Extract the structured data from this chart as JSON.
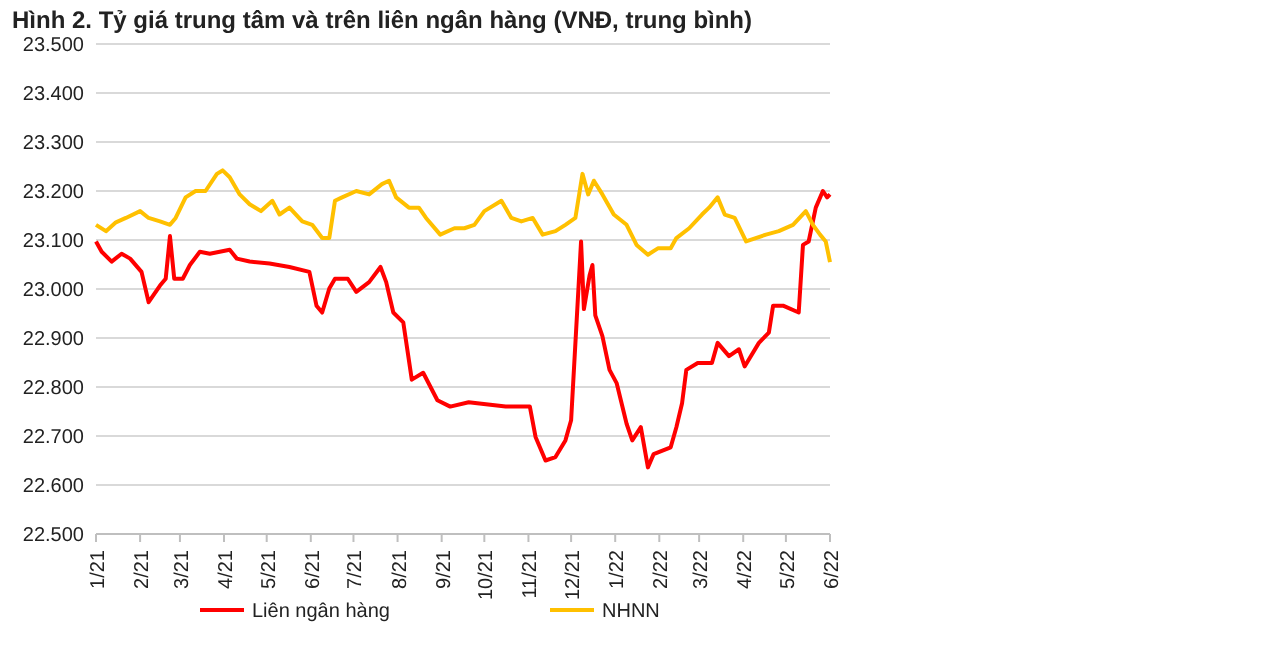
{
  "chart_data": {
    "type": "line",
    "title": "Hình 2. Tỷ giá trung tâm và trên liên ngân hàng (VNĐ, trung bình)",
    "xlim": [
      "2021-01-01",
      "2022-06-01"
    ],
    "xticks": [
      {
        "value": "2021-01-01",
        "label": "1/21"
      },
      {
        "value": "2021-02-01",
        "label": "2/21"
      },
      {
        "value": "2021-03-01",
        "label": "3/21"
      },
      {
        "value": "2021-04-01",
        "label": "4/21"
      },
      {
        "value": "2021-05-01",
        "label": "5/21"
      },
      {
        "value": "2021-06-01",
        "label": "6/21"
      },
      {
        "value": "2021-07-01",
        "label": "7/21"
      },
      {
        "value": "2021-08-01",
        "label": "8/21"
      },
      {
        "value": "2021-09-01",
        "label": "9/21"
      },
      {
        "value": "2021-10-01",
        "label": "10/21"
      },
      {
        "value": "2021-11-01",
        "label": "11/21"
      },
      {
        "value": "2021-12-01",
        "label": "12/21"
      },
      {
        "value": "2022-01-01",
        "label": "1/22"
      },
      {
        "value": "2022-02-01",
        "label": "2/22"
      },
      {
        "value": "2022-03-01",
        "label": "3/22"
      },
      {
        "value": "2022-04-01",
        "label": "4/22"
      },
      {
        "value": "2022-05-01",
        "label": "5/22"
      },
      {
        "value": "2022-06-01",
        "label": "6/22"
      }
    ],
    "ylim": [
      22500,
      23500
    ],
    "yticks": [
      {
        "value": 22500,
        "label": "22.500"
      },
      {
        "value": 22600,
        "label": "22.600"
      },
      {
        "value": 22700,
        "label": "22.700"
      },
      {
        "value": 22800,
        "label": "22.800"
      },
      {
        "value": 22900,
        "label": "22.900"
      },
      {
        "value": 23000,
        "label": "23.000"
      },
      {
        "value": 23100,
        "label": "23.100"
      },
      {
        "value": 23200,
        "label": "23.200"
      },
      {
        "value": 23300,
        "label": "23.300"
      },
      {
        "value": 23400,
        "label": "23.400"
      },
      {
        "value": 23500,
        "label": "23.500"
      }
    ],
    "grid": "y",
    "legend": "bottom",
    "marker": "none",
    "line_style": "solid",
    "series": [
      {
        "name": "Liên ngân hàng",
        "color": "#ff0000",
        "x": [
          "2021-01-01",
          "2021-01-05",
          "2021-01-12",
          "2021-01-19",
          "2021-01-25",
          "2021-02-02",
          "2021-02-07",
          "2021-02-15",
          "2021-02-19",
          "2021-02-22",
          "2021-02-25",
          "2021-03-03",
          "2021-03-08",
          "2021-03-15",
          "2021-03-22",
          "2021-04-05",
          "2021-04-10",
          "2021-04-19",
          "2021-05-03",
          "2021-05-17",
          "2021-05-31",
          "2021-06-05",
          "2021-06-09",
          "2021-06-14",
          "2021-06-18",
          "2021-06-27",
          "2021-07-03",
          "2021-07-12",
          "2021-07-20",
          "2021-07-24",
          "2021-07-29",
          "2021-08-05",
          "2021-08-11",
          "2021-08-19",
          "2021-08-29",
          "2021-09-07",
          "2021-09-20",
          "2021-09-26",
          "2021-10-16",
          "2021-11-02",
          "2021-11-06",
          "2021-11-13",
          "2021-11-20",
          "2021-11-27",
          "2021-12-01",
          "2021-12-08",
          "2021-12-10",
          "2021-12-14",
          "2021-12-16",
          "2021-12-18",
          "2021-12-23",
          "2021-12-28",
          "2022-01-02",
          "2022-01-09",
          "2022-01-13",
          "2022-01-19",
          "2022-01-24",
          "2022-01-28",
          "2022-02-09",
          "2022-02-13",
          "2022-02-17",
          "2022-02-20",
          "2022-02-28",
          "2022-03-10",
          "2022-03-14",
          "2022-03-22",
          "2022-03-29",
          "2022-04-02",
          "2022-04-12",
          "2022-04-19",
          "2022-04-22",
          "2022-04-29",
          "2022-05-10",
          "2022-05-13",
          "2022-05-17",
          "2022-05-22",
          "2022-05-27",
          "2022-05-30",
          "2022-06-01"
        ],
        "values": [
          23097,
          23076,
          23056,
          23072,
          23062,
          23035,
          22973,
          23007,
          23021,
          23108,
          23021,
          23021,
          23049,
          23076,
          23072,
          23080,
          23062,
          23056,
          23052,
          23045,
          23035,
          22966,
          22952,
          23001,
          23021,
          23021,
          22994,
          23014,
          23045,
          23014,
          22952,
          22932,
          22815,
          22829,
          22773,
          22760,
          22769,
          22767,
          22760,
          22760,
          22698,
          22650,
          22657,
          22691,
          22732,
          23097,
          22959,
          23028,
          23049,
          22946,
          22904,
          22835,
          22808,
          22725,
          22691,
          22718,
          22636,
          22663,
          22677,
          22718,
          22767,
          22835,
          22849,
          22849,
          22890,
          22863,
          22877,
          22842,
          22890,
          22911,
          22966,
          22966,
          22952,
          23090,
          23097,
          23166,
          23200,
          23187,
          23193
        ]
      },
      {
        "name": "NHNN",
        "color": "#ffc000",
        "x": [
          "2021-01-01",
          "2021-01-08",
          "2021-01-15",
          "2021-01-22",
          "2021-02-01",
          "2021-02-07",
          "2021-02-15",
          "2021-02-22",
          "2021-02-26",
          "2021-03-05",
          "2021-03-12",
          "2021-03-19",
          "2021-03-27",
          "2021-03-31",
          "2021-04-05",
          "2021-04-12",
          "2021-04-19",
          "2021-04-27",
          "2021-05-05",
          "2021-05-10",
          "2021-05-17",
          "2021-05-26",
          "2021-06-02",
          "2021-06-09",
          "2021-06-14",
          "2021-06-18",
          "2021-06-23",
          "2021-07-03",
          "2021-07-12",
          "2021-07-21",
          "2021-07-26",
          "2021-07-31",
          "2021-08-09",
          "2021-08-16",
          "2021-08-21",
          "2021-08-31",
          "2021-09-10",
          "2021-09-17",
          "2021-09-24",
          "2021-10-01",
          "2021-10-13",
          "2021-10-20",
          "2021-10-27",
          "2021-11-04",
          "2021-11-11",
          "2021-11-20",
          "2021-11-27",
          "2021-12-04",
          "2021-12-09",
          "2021-12-13",
          "2021-12-17",
          "2021-12-23",
          "2021-12-31",
          "2022-01-09",
          "2022-01-16",
          "2022-01-24",
          "2022-01-31",
          "2022-02-09",
          "2022-02-13",
          "2022-02-22",
          "2022-03-03",
          "2022-03-08",
          "2022-03-14",
          "2022-03-19",
          "2022-03-26",
          "2022-04-03",
          "2022-04-17",
          "2022-04-26",
          "2022-05-06",
          "2022-05-15",
          "2022-05-20",
          "2022-05-25",
          "2022-05-29",
          "2022-06-01"
        ],
        "values": [
          23131,
          23118,
          23136,
          23145,
          23159,
          23145,
          23138,
          23131,
          23145,
          23187,
          23200,
          23200,
          23235,
          23242,
          23228,
          23193,
          23173,
          23159,
          23180,
          23152,
          23166,
          23138,
          23131,
          23104,
          23104,
          23180,
          23187,
          23200,
          23193,
          23214,
          23221,
          23187,
          23166,
          23166,
          23145,
          23111,
          23124,
          23124,
          23131,
          23159,
          23180,
          23145,
          23138,
          23145,
          23111,
          23118,
          23131,
          23145,
          23235,
          23193,
          23221,
          23193,
          23152,
          23131,
          23090,
          23070,
          23083,
          23083,
          23104,
          23124,
          23152,
          23166,
          23187,
          23152,
          23145,
          23097,
          23111,
          23118,
          23131,
          23159,
          23131,
          23111,
          23097,
          23055
        ]
      }
    ]
  }
}
